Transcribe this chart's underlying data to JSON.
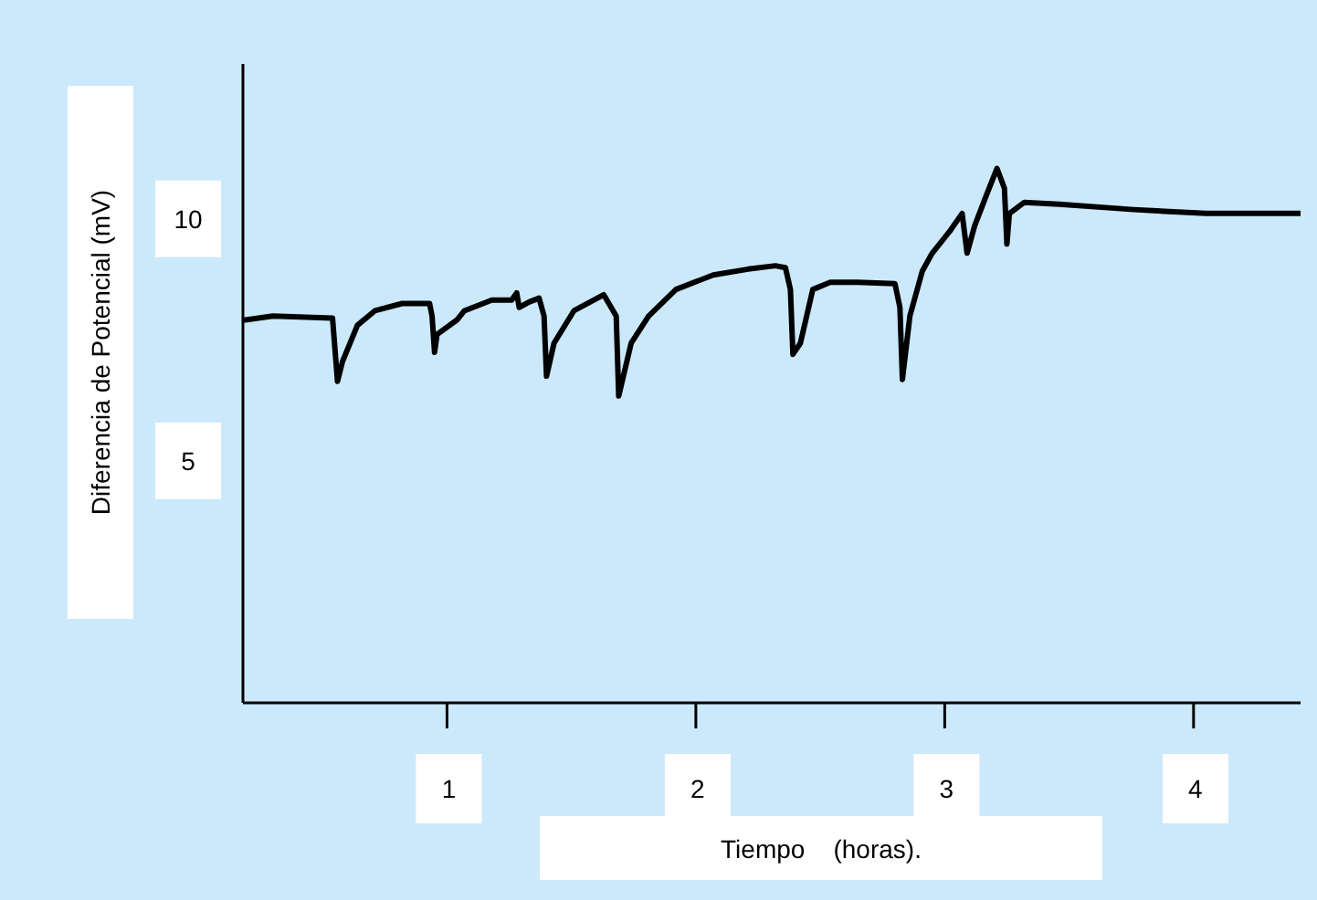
{
  "chart_data": {
    "type": "line",
    "xlabel": "Tiempo    (horas).",
    "ylabel": "Diferencia de Potencial (mV)",
    "x": [
      0.19,
      0.3,
      0.54,
      0.56,
      0.58,
      0.64,
      0.71,
      0.82,
      0.93,
      0.94,
      0.95,
      0.96,
      1.04,
      1.07,
      1.18,
      1.26,
      1.28,
      1.29,
      1.33,
      1.37,
      1.39,
      1.4,
      1.43,
      1.51,
      1.63,
      1.68,
      1.69,
      1.74,
      1.81,
      1.92,
      2.07,
      2.21,
      2.32,
      2.36,
      2.38,
      2.39,
      2.42,
      2.47,
      2.54,
      2.65,
      2.8,
      2.82,
      2.83,
      2.86,
      2.91,
      2.95,
      3.02,
      3.07,
      3.09,
      3.12,
      3.17,
      3.21,
      3.24,
      3.25,
      3.26,
      3.32,
      3.46,
      3.76,
      4.05,
      4.43
    ],
    "series": [
      {
        "color": "#000000",
        "values": [
          7.91,
          7.99,
          7.95,
          6.64,
          7.05,
          7.8,
          8.1,
          8.25,
          8.25,
          7.99,
          7.24,
          7.61,
          7.91,
          8.1,
          8.32,
          8.32,
          8.47,
          8.17,
          8.28,
          8.36,
          7.99,
          6.75,
          7.43,
          8.1,
          8.43,
          7.99,
          6.34,
          7.43,
          7.99,
          8.54,
          8.84,
          8.96,
          9.03,
          8.99,
          8.54,
          7.2,
          7.43,
          8.54,
          8.69,
          8.69,
          8.66,
          8.17,
          6.68,
          7.99,
          8.92,
          9.29,
          9.74,
          10.11,
          9.29,
          9.85,
          10.52,
          11.04,
          10.63,
          9.48,
          10.11,
          10.34,
          10.3,
          10.19,
          10.11,
          10.11
        ]
      }
    ],
    "xlim": [
      0.18,
      4.43
    ],
    "xticks": [
      1,
      2,
      3,
      4
    ],
    "ylim": [
      0,
      13.2
    ],
    "yticks": [
      5,
      10
    ],
    "grid": false,
    "legend": false,
    "marker": "none",
    "line_style": "solid"
  }
}
